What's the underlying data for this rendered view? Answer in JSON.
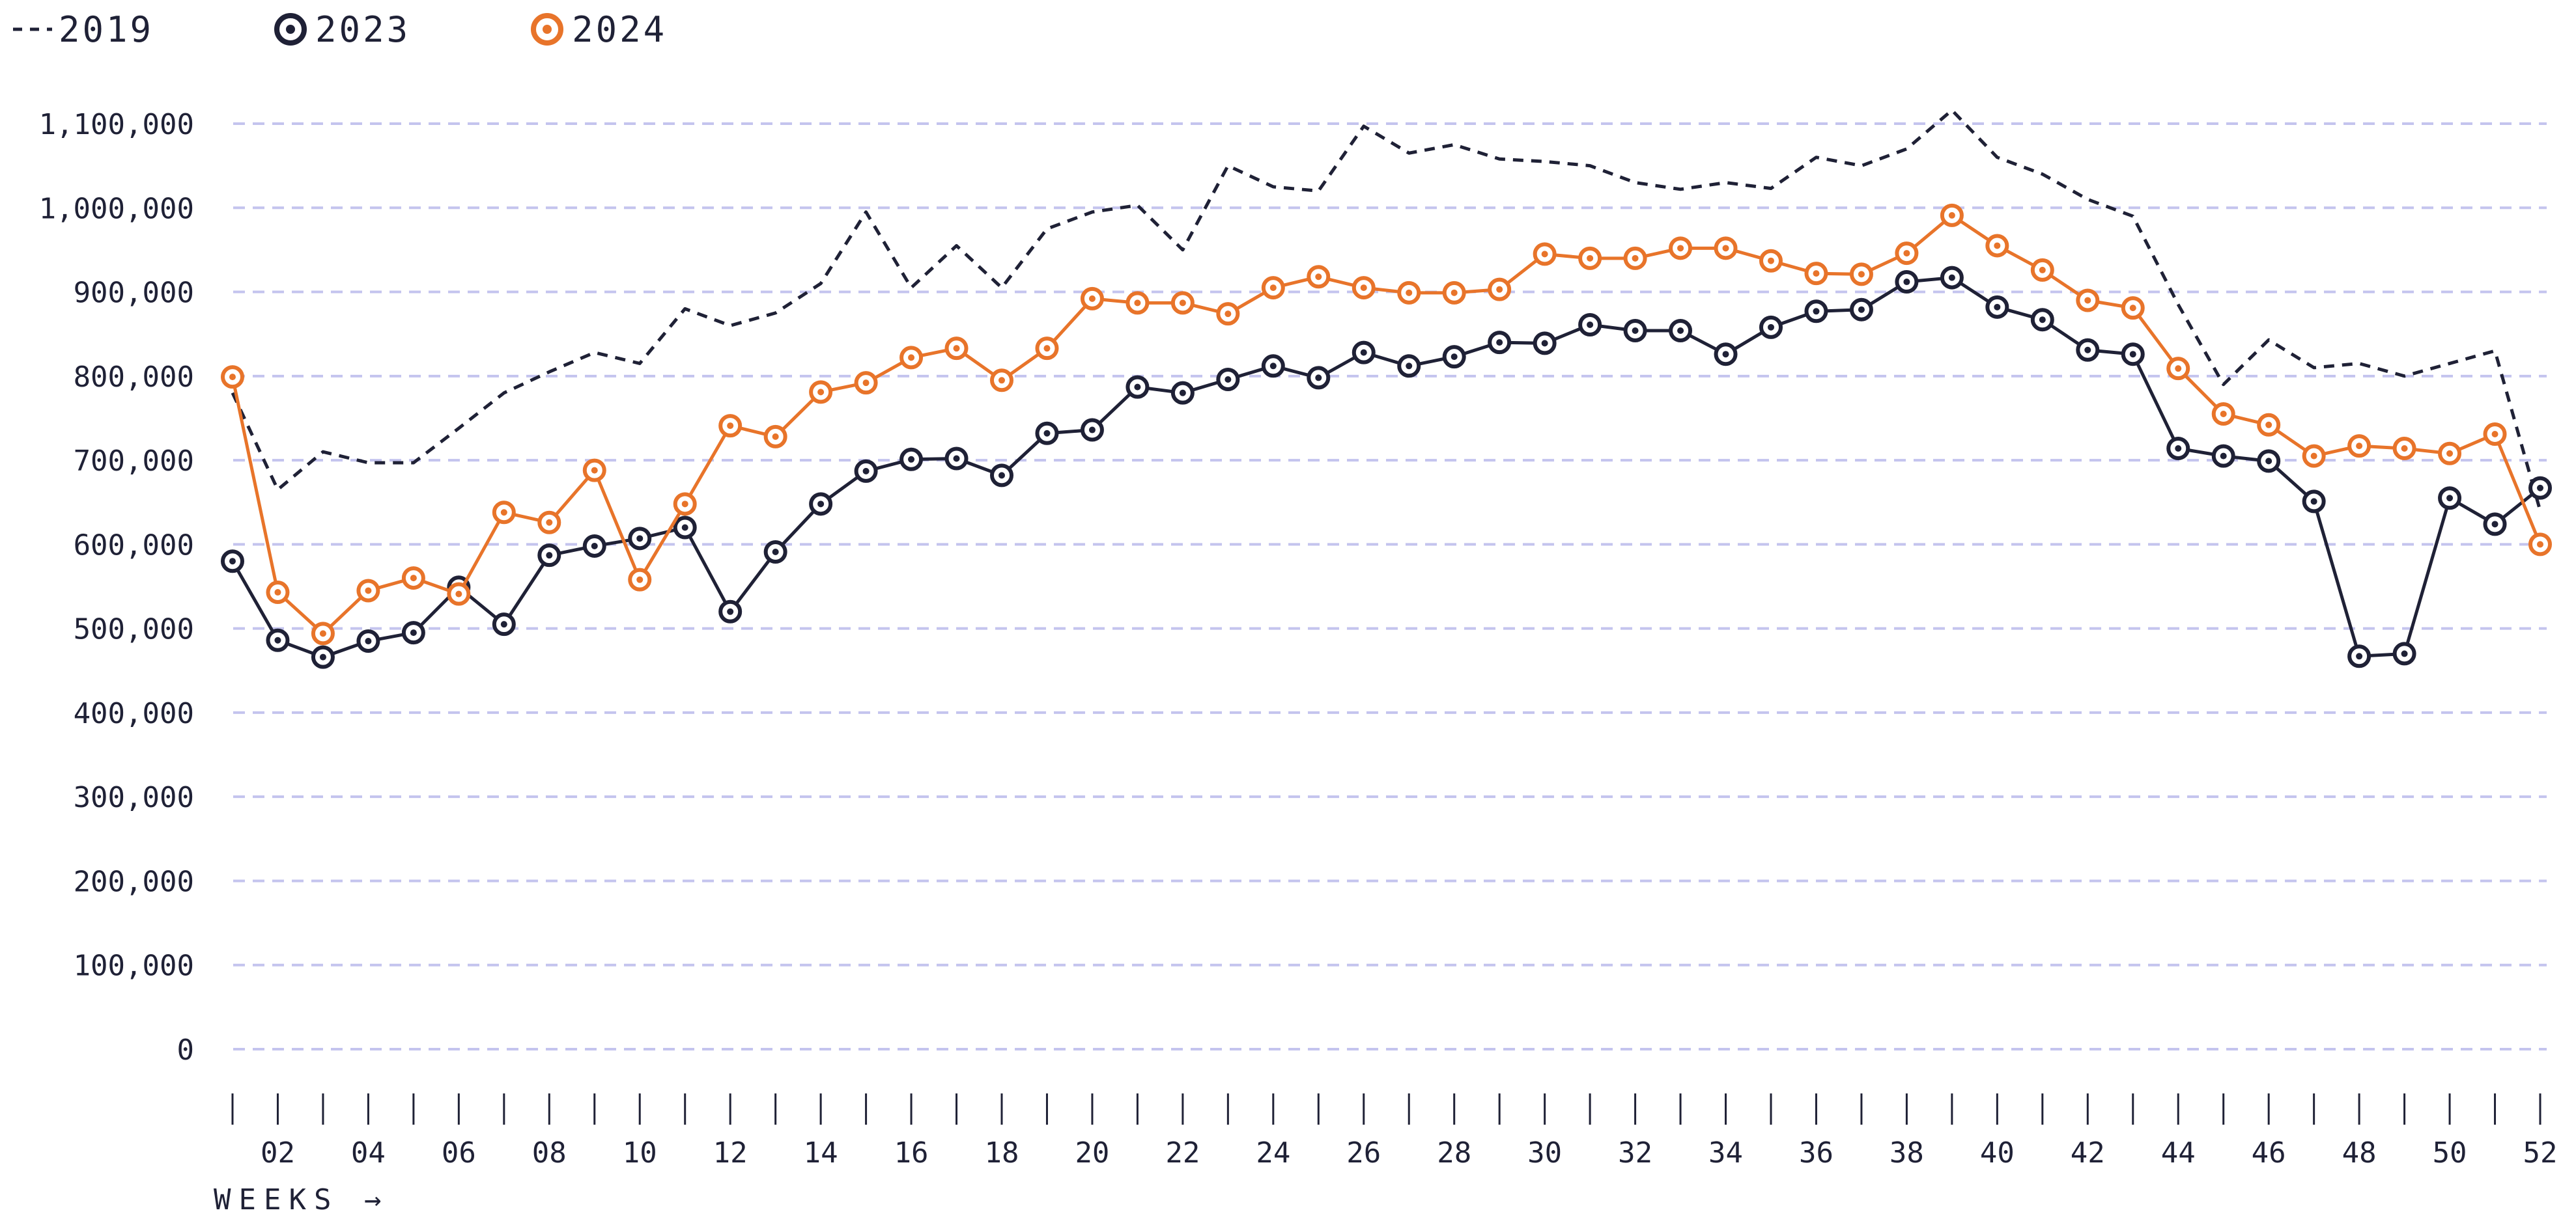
{
  "legend": [
    {
      "name": "2019",
      "marker": "dashed-line"
    },
    {
      "name": "2023",
      "marker": "ring-dot"
    },
    {
      "name": "2024",
      "marker": "ring-dot"
    }
  ],
  "colors": {
    "2019": "#1f2136",
    "2023": "#1f2136",
    "2024": "#e8742a",
    "grid": "#c4c4ee"
  },
  "chart_data": {
    "type": "line",
    "title": "",
    "xlabel": "WEEKS →",
    "ylabel": "",
    "ylim": [
      0,
      1100000
    ],
    "xlim": [
      1,
      52
    ],
    "yticks": [
      "0",
      "100,000",
      "200,000",
      "300,000",
      "400,000",
      "500,000",
      "600,000",
      "700,000",
      "800,000",
      "900,000",
      "1,000,000",
      "1,100,000"
    ],
    "xticks": [
      "02",
      "04",
      "06",
      "08",
      "10",
      "12",
      "14",
      "16",
      "18",
      "20",
      "22",
      "24",
      "26",
      "28",
      "30",
      "32",
      "34",
      "36",
      "38",
      "40",
      "42",
      "44",
      "46",
      "48",
      "50",
      "52"
    ],
    "grid": true,
    "legend_position": "top-left",
    "x": [
      1,
      2,
      3,
      4,
      5,
      6,
      7,
      8,
      9,
      10,
      11,
      12,
      13,
      14,
      15,
      16,
      17,
      18,
      19,
      20,
      21,
      22,
      23,
      24,
      25,
      26,
      27,
      28,
      29,
      30,
      31,
      32,
      33,
      34,
      35,
      36,
      37,
      38,
      39,
      40,
      41,
      42,
      43,
      44,
      45,
      46,
      47,
      48,
      49,
      50,
      51,
      52
    ],
    "series": [
      {
        "name": "2019",
        "style": "dashed",
        "values": [
          780000,
          665000,
          710000,
          697000,
          697000,
          738000,
          780000,
          805000,
          828000,
          815000,
          880000,
          860000,
          875000,
          910000,
          995000,
          905000,
          955000,
          905000,
          975000,
          995000,
          1003000,
          950000,
          1050000,
          1025000,
          1020000,
          1097000,
          1065000,
          1075000,
          1058000,
          1055000,
          1050000,
          1030000,
          1022000,
          1030000,
          1023000,
          1060000,
          1050000,
          1070000,
          1116000,
          1060000,
          1040000,
          1010000,
          990000,
          885000,
          790000,
          843000,
          810000,
          815000,
          800000,
          815000,
          830000,
          640000
        ]
      },
      {
        "name": "2023",
        "style": "solid-markers",
        "values": [
          580000,
          486000,
          466000,
          485000,
          495000,
          549000,
          505000,
          587000,
          598000,
          607000,
          620000,
          520000,
          591000,
          648000,
          687000,
          701000,
          702000,
          682000,
          732000,
          736000,
          787000,
          780000,
          796000,
          812000,
          798000,
          828000,
          812000,
          823000,
          840000,
          839000,
          861000,
          854000,
          854000,
          826000,
          858000,
          877000,
          879000,
          912000,
          917000,
          882000,
          867000,
          831000,
          826000,
          714000,
          705000,
          699000,
          651000,
          467000,
          470000,
          655000,
          624000,
          667000
        ]
      },
      {
        "name": "2024",
        "style": "solid-markers",
        "values": [
          799000,
          543000,
          494000,
          545000,
          560000,
          541000,
          638000,
          626000,
          688000,
          558000,
          648000,
          741000,
          728000,
          781000,
          792000,
          822000,
          833000,
          795000,
          833000,
          892000,
          887000,
          887000,
          874000,
          905000,
          918000,
          905000,
          899000,
          899000,
          903000,
          945000,
          940000,
          940000,
          952000,
          952000,
          937000,
          922000,
          921000,
          946000,
          991000,
          955000,
          926000,
          890000,
          881000,
          809000,
          755000,
          742000,
          705000,
          717000,
          714000,
          708000,
          731000,
          600000
        ]
      }
    ]
  }
}
